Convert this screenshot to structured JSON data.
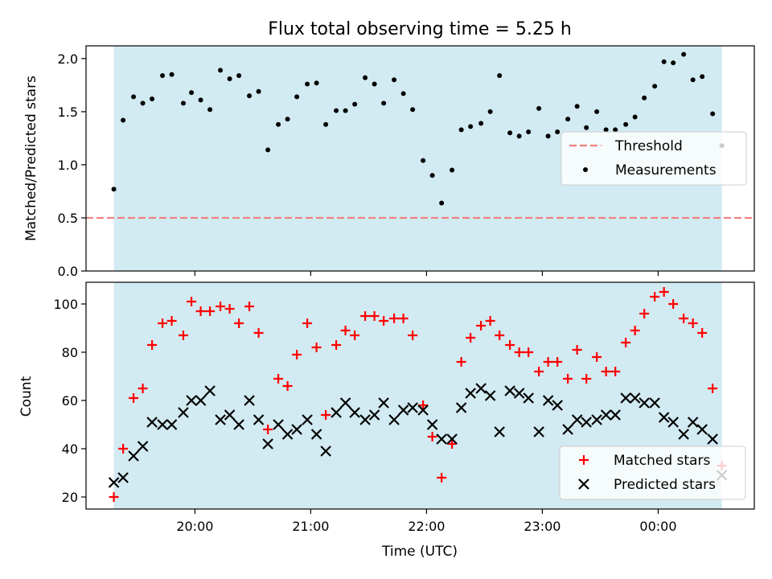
{
  "chart_data": [
    {
      "type": "scatter",
      "title": "Flux total observing time = 5.25 h",
      "ylabel": "Matched/Predicted stars",
      "xlabel": "",
      "ylim": [
        0,
        2.12
      ],
      "yticks": [
        0.0,
        0.5,
        1.0,
        1.5,
        2.0
      ],
      "ytick_labels": [
        "0.0",
        "0.5",
        "1.0",
        "1.5",
        "2.0"
      ],
      "x_unit": "hours since 00:00 UTC of observing night start",
      "xlim": [
        19.06,
        24.83
      ],
      "xticks": [
        20,
        21,
        22,
        23,
        24
      ],
      "shaded_span": [
        19.3,
        24.55
      ],
      "shade_color": "#add8e6",
      "legend_position": "right",
      "legend": [
        "Threshold",
        "Measurements"
      ],
      "threshold": {
        "name": "Threshold",
        "value": 0.5,
        "color": "#f08080",
        "style": "dashed"
      },
      "series": [
        {
          "name": "Measurements",
          "color": "#000000",
          "marker": "dot",
          "x": [
            19.3,
            19.38,
            19.47,
            19.55,
            19.63,
            19.72,
            19.8,
            19.9,
            19.97,
            20.05,
            20.13,
            20.22,
            20.3,
            20.38,
            20.47,
            20.55,
            20.63,
            20.72,
            20.8,
            20.88,
            20.97,
            21.05,
            21.13,
            21.22,
            21.3,
            21.38,
            21.47,
            21.55,
            21.63,
            21.72,
            21.8,
            21.88,
            21.97,
            22.05,
            22.13,
            22.22,
            22.3,
            22.38,
            22.47,
            22.55,
            22.63,
            22.72,
            22.8,
            22.88,
            22.97,
            23.05,
            23.13,
            23.22,
            23.3,
            23.38,
            23.47,
            23.55,
            23.63,
            23.72,
            23.8,
            23.88,
            23.97,
            24.05,
            24.13,
            24.22,
            24.3,
            24.38,
            24.47,
            24.55
          ],
          "y": [
            0.77,
            1.42,
            1.64,
            1.58,
            1.62,
            1.84,
            1.85,
            1.58,
            1.68,
            1.61,
            1.52,
            1.89,
            1.81,
            1.84,
            1.65,
            1.69,
            1.14,
            1.38,
            1.43,
            1.64,
            1.76,
            1.77,
            1.38,
            1.51,
            1.51,
            1.57,
            1.82,
            1.76,
            1.58,
            1.8,
            1.67,
            1.52,
            1.04,
            0.9,
            0.64,
            0.95,
            1.33,
            1.36,
            1.39,
            1.5,
            1.84,
            1.3,
            1.27,
            1.31,
            1.53,
            1.27,
            1.31,
            1.43,
            1.55,
            1.35,
            1.5,
            1.33,
            1.33,
            1.38,
            1.45,
            1.63,
            1.74,
            1.97,
            1.96,
            2.04,
            1.8,
            1.83,
            1.48,
            1.18
          ]
        }
      ]
    },
    {
      "type": "scatter",
      "title": "",
      "ylabel": "Count",
      "xlabel": "Time (UTC)",
      "ylim": [
        15,
        109
      ],
      "yticks": [
        20,
        40,
        60,
        80,
        100
      ],
      "ytick_labels": [
        "20",
        "40",
        "60",
        "80",
        "100"
      ],
      "xlim": [
        19.06,
        24.83
      ],
      "xticks": [
        20,
        21,
        22,
        23,
        24
      ],
      "xtick_labels": [
        "20:00",
        "21:00",
        "22:00",
        "23:00",
        "00:00"
      ],
      "shaded_span": [
        19.3,
        24.55
      ],
      "shade_color": "#add8e6",
      "legend_position": "lower right",
      "legend": [
        "Matched stars",
        "Predicted stars"
      ],
      "series": [
        {
          "name": "Matched stars",
          "color": "#ff0000",
          "marker": "plus",
          "x": [
            19.3,
            19.38,
            19.47,
            19.55,
            19.63,
            19.72,
            19.8,
            19.9,
            19.97,
            20.05,
            20.13,
            20.22,
            20.3,
            20.38,
            20.47,
            20.55,
            20.63,
            20.72,
            20.8,
            20.88,
            20.97,
            21.05,
            21.13,
            21.22,
            21.3,
            21.38,
            21.47,
            21.55,
            21.63,
            21.72,
            21.8,
            21.88,
            21.97,
            22.05,
            22.13,
            22.22,
            22.3,
            22.38,
            22.47,
            22.55,
            22.63,
            22.72,
            22.8,
            22.88,
            22.97,
            23.05,
            23.13,
            23.22,
            23.3,
            23.38,
            23.47,
            23.55,
            23.63,
            23.72,
            23.8,
            23.88,
            23.97,
            24.05,
            24.13,
            24.22,
            24.3,
            24.38,
            24.47,
            24.55
          ],
          "y": [
            20,
            40,
            61,
            65,
            83,
            92,
            93,
            87,
            101,
            97,
            97,
            99,
            98,
            92,
            99,
            88,
            48,
            69,
            66,
            79,
            92,
            82,
            54,
            83,
            89,
            87,
            95,
            95,
            93,
            94,
            94,
            87,
            58,
            45,
            28,
            42,
            76,
            86,
            91,
            93,
            87,
            83,
            80,
            80,
            72,
            76,
            76,
            69,
            81,
            69,
            78,
            72,
            72,
            84,
            89,
            96,
            103,
            105,
            100,
            94,
            92,
            88,
            65,
            33
          ]
        },
        {
          "name": "Predicted stars",
          "color": "#000000",
          "marker": "x",
          "x": [
            19.3,
            19.38,
            19.47,
            19.55,
            19.63,
            19.72,
            19.8,
            19.9,
            19.97,
            20.05,
            20.13,
            20.22,
            20.3,
            20.38,
            20.47,
            20.55,
            20.63,
            20.72,
            20.8,
            20.88,
            20.97,
            21.05,
            21.13,
            21.22,
            21.3,
            21.38,
            21.47,
            21.55,
            21.63,
            21.72,
            21.8,
            21.88,
            21.97,
            22.05,
            22.13,
            22.22,
            22.3,
            22.38,
            22.47,
            22.55,
            22.63,
            22.72,
            22.8,
            22.88,
            22.97,
            23.05,
            23.13,
            23.22,
            23.3,
            23.38,
            23.47,
            23.55,
            23.63,
            23.72,
            23.8,
            23.88,
            23.97,
            24.05,
            24.13,
            24.22,
            24.3,
            24.38,
            24.47,
            24.55
          ],
          "y": [
            26,
            28,
            37,
            41,
            51,
            50,
            50,
            55,
            60,
            60,
            64,
            52,
            54,
            50,
            60,
            52,
            42,
            50,
            46,
            48,
            52,
            46,
            39,
            55,
            59,
            55,
            52,
            54,
            59,
            52,
            56,
            57,
            56,
            50,
            44,
            44,
            57,
            63,
            65,
            62,
            47,
            64,
            63,
            61,
            47,
            60,
            58,
            48,
            52,
            51,
            52,
            54,
            54,
            61,
            61,
            59,
            59,
            53,
            51,
            46,
            51,
            48,
            44,
            29
          ]
        }
      ]
    }
  ]
}
